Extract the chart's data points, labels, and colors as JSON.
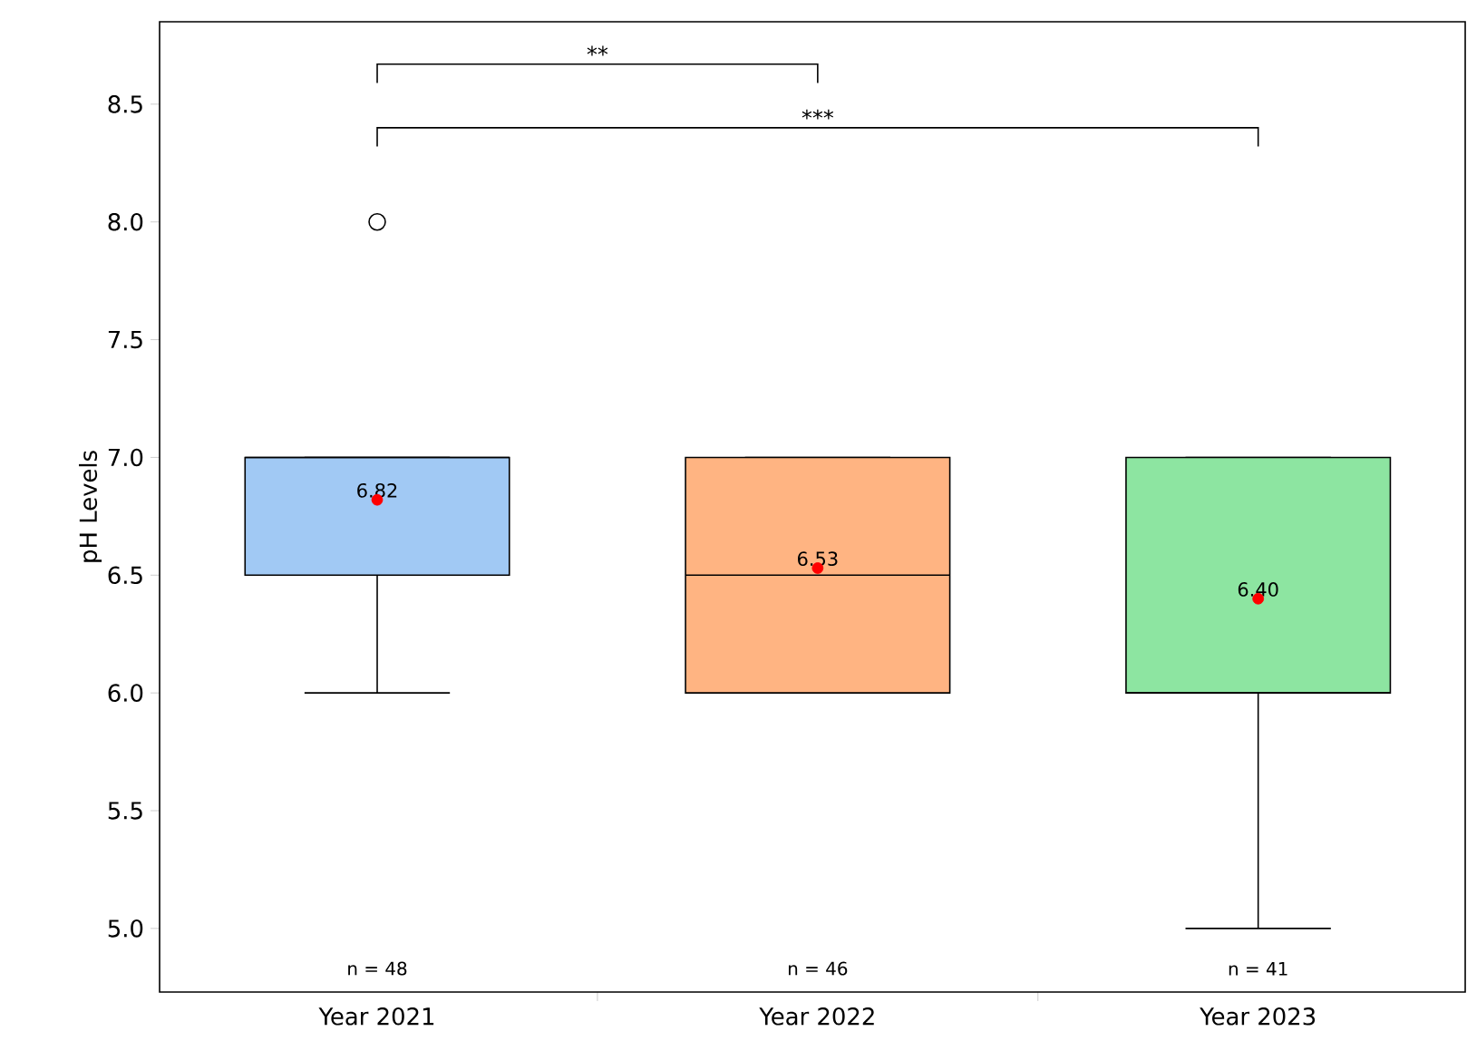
{
  "chart_data": {
    "type": "box",
    "ylabel": "pH Levels",
    "categories": [
      "Year 2021",
      "Year 2022",
      "Year 2023"
    ],
    "colors": [
      "#a1c9f4",
      "#ffb482",
      "#8de5a1"
    ],
    "boxes": [
      {
        "low": 6.0,
        "q1": 6.5,
        "median": 7.0,
        "q3": 7.0,
        "high": 7.0,
        "mean": 6.82,
        "outliers": [
          8.0
        ]
      },
      {
        "low": 6.0,
        "q1": 6.0,
        "median": 6.5,
        "q3": 7.0,
        "high": 7.0,
        "mean": 6.53
      },
      {
        "low": 5.0,
        "q1": 6.0,
        "median": 6.0,
        "q3": 7.0,
        "high": 7.0,
        "mean": 6.4
      }
    ],
    "ylim": [
      4.73,
      8.85
    ],
    "yticks": [
      {
        "value": 5,
        "label": "5.0"
      },
      {
        "value": 5.5,
        "label": "5.5"
      },
      {
        "value": 6,
        "label": "6.0"
      },
      {
        "value": 6.5,
        "label": "6.5"
      },
      {
        "value": 7,
        "label": "7.0"
      },
      {
        "value": 7.5,
        "label": "7.5"
      },
      {
        "value": 8,
        "label": "8.0"
      },
      {
        "value": 8.5,
        "label": "8.5"
      }
    ],
    "annotations": [
      "**",
      "***",
      "6.82",
      "6.53",
      "6.40",
      "n = 48",
      "n = 46",
      "n = 41"
    ]
  }
}
